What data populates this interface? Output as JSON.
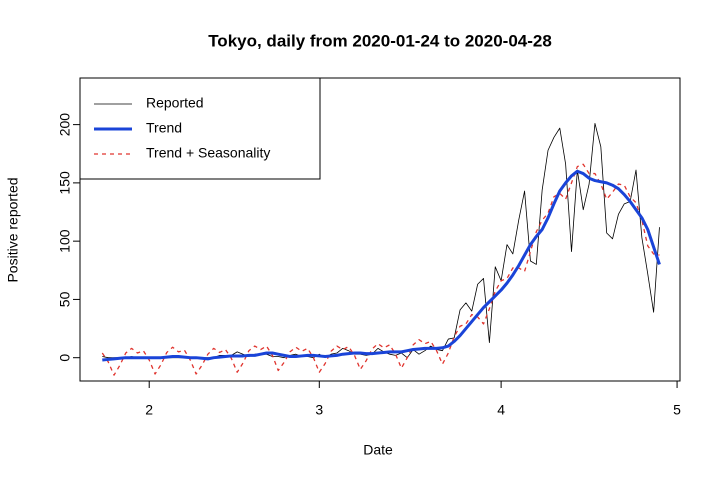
{
  "chart_data": {
    "type": "line",
    "title": "Tokyo, daily from 2020-01-24 to 2020-04-28",
    "x_label": "Date",
    "y_label": "Positive reported",
    "x": [
      24,
      25,
      26,
      27,
      28,
      29,
      30,
      31,
      32,
      33,
      34,
      35,
      36,
      37,
      38,
      39,
      40,
      41,
      42,
      43,
      44,
      45,
      46,
      47,
      48,
      49,
      50,
      51,
      52,
      53,
      54,
      55,
      56,
      57,
      58,
      59,
      60,
      61,
      62,
      63,
      64,
      65,
      66,
      67,
      68,
      69,
      70,
      71,
      72,
      73,
      74,
      75,
      76,
      77,
      78,
      79,
      80,
      81,
      82,
      83,
      84,
      85,
      86,
      87,
      88,
      89,
      90,
      91,
      92,
      93,
      94,
      95,
      96,
      97,
      98,
      99,
      100,
      101,
      102,
      103,
      104,
      105,
      106,
      107,
      108,
      109,
      110,
      111,
      112,
      113,
      114,
      115,
      116,
      117,
      118,
      119
    ],
    "xlim": [
      20.2,
      122.5
    ],
    "xticks": [
      {
        "value": 32,
        "label": "2"
      },
      {
        "value": 61,
        "label": "3"
      },
      {
        "value": 92,
        "label": "4"
      },
      {
        "value": 122,
        "label": "5"
      }
    ],
    "ylim": [
      -20,
      240
    ],
    "yticks": [
      0,
      50,
      100,
      150,
      200
    ],
    "legend": "top-left",
    "series": [
      {
        "name": "Reported",
        "color": "#000000",
        "width": 0.8,
        "dash": "solid",
        "values": [
          1,
          0,
          0,
          0,
          0,
          1,
          0,
          0,
          0,
          0,
          0,
          0,
          0,
          0,
          0,
          0,
          0,
          0,
          0,
          0,
          2,
          2,
          2,
          5,
          3,
          1,
          3,
          3,
          3,
          1,
          1,
          0,
          2,
          3,
          1,
          1,
          0,
          3,
          0,
          3,
          4,
          8,
          6,
          3,
          3,
          2,
          3,
          8,
          5,
          3,
          2,
          4,
          0,
          7,
          3,
          6,
          10,
          7,
          6,
          16,
          17,
          41,
          47,
          40,
          63,
          68,
          13,
          78,
          66,
          97,
          89,
          118,
          143,
          83,
          80,
          144,
          178,
          189,
          197,
          166,
          91,
          161,
          127,
          149,
          201,
          181,
          107,
          102,
          123,
          132,
          134,
          161,
          103,
          72,
          39,
          112
        ]
      },
      {
        "name": "Trend",
        "color": "#1a44d8",
        "width": 3,
        "dash": "solid",
        "values": [
          -2,
          -1.5,
          -1,
          -0.5,
          0,
          0,
          0,
          0,
          0,
          0,
          0,
          0.5,
          1,
          1,
          0.5,
          0,
          0,
          -0.5,
          -1,
          0,
          0.5,
          1,
          1.5,
          1.5,
          1.5,
          2,
          2,
          3,
          4,
          4,
          3,
          2,
          1,
          1,
          1.5,
          2,
          2,
          1.5,
          1,
          1.5,
          2,
          3,
          3.5,
          4,
          4,
          3.5,
          3.5,
          4,
          4.5,
          5,
          5,
          5,
          6,
          7,
          7.5,
          8,
          8,
          8,
          8.5,
          10,
          14,
          19,
          25,
          31,
          37,
          43,
          48,
          53,
          58,
          64,
          71,
          79,
          88,
          97,
          104,
          110,
          120,
          132,
          143,
          150,
          156,
          160,
          158,
          154,
          152,
          151,
          150,
          148,
          145,
          140,
          134,
          127,
          120,
          110,
          95,
          80
        ]
      },
      {
        "name": "Trend + Seasonality",
        "color": "#e0342e",
        "width": 1.3,
        "dash": "dashed",
        "values": [
          4,
          -3.5,
          -15,
          -6.5,
          4,
          8,
          4,
          6,
          -2,
          -14,
          -6,
          4.5,
          9,
          5,
          6.5,
          -2,
          -14,
          -6.5,
          3,
          8,
          4.5,
          7,
          -0.5,
          -12.5,
          -4.5,
          6,
          10,
          7,
          10,
          2,
          -11,
          -4,
          5,
          9,
          5.5,
          8,
          0,
          -12.5,
          -5,
          5.5,
          10,
          7,
          9.5,
          2,
          -10,
          -2.5,
          7.5,
          12,
          8.5,
          11,
          3,
          -9,
          0,
          11,
          15.5,
          12,
          14,
          6,
          -5.5,
          4,
          18,
          27,
          29,
          37,
          35,
          29,
          42,
          57,
          66,
          68,
          77,
          77,
          74,
          91,
          108,
          118,
          124,
          138,
          141,
          136,
          150,
          164,
          166,
          158,
          158,
          149,
          136,
          142,
          149,
          148,
          138,
          133,
          118,
          96,
          89,
          88
        ]
      }
    ]
  }
}
